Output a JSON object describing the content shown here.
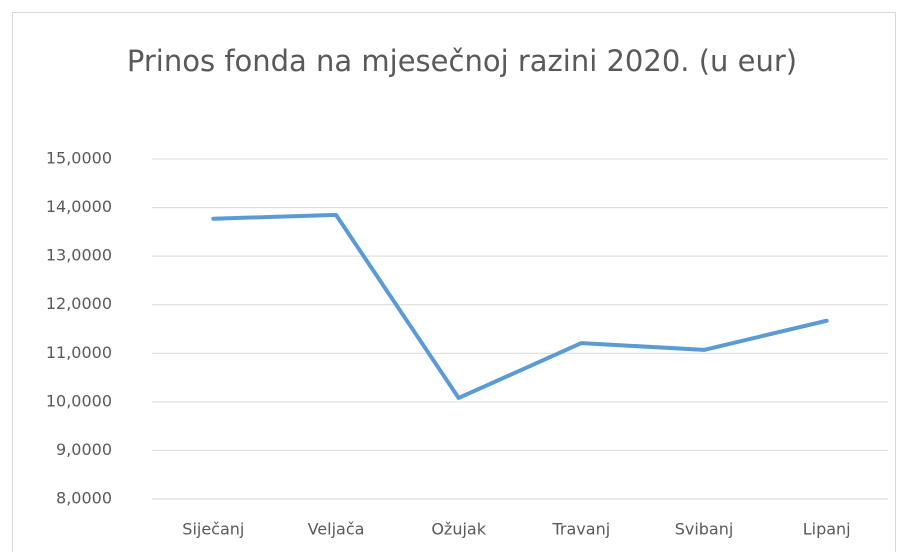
{
  "chart_data": {
    "type": "line",
    "title": "Prinos fonda na mjesečnoj razini 2020. (u eur)",
    "categories": [
      "Siječanj",
      "Veljača",
      "Ožujak",
      "Travanj",
      "Svibanj",
      "Lipanj"
    ],
    "series": [
      {
        "color": "#5b9bd5",
        "values": [
          13.77,
          13.85,
          10.08,
          11.21,
          11.07,
          11.67
        ]
      }
    ],
    "ylim": [
      8,
      15
    ],
    "yticks": [
      {
        "value": 8,
        "label": "8,0000"
      },
      {
        "value": 9,
        "label": "9,0000"
      },
      {
        "value": 10,
        "label": "10,0000"
      },
      {
        "value": 11,
        "label": "11,0000"
      },
      {
        "value": 12,
        "label": "12,0000"
      },
      {
        "value": 13,
        "label": "13,0000"
      },
      {
        "value": 14,
        "label": "14,0000"
      },
      {
        "value": 15,
        "label": "15,0000"
      }
    ],
    "grid": true
  }
}
